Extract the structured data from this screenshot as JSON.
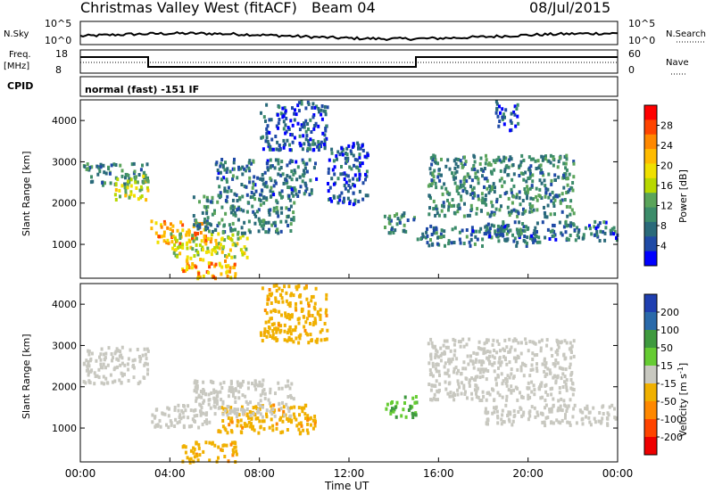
{
  "header": {
    "station": "Christmas Valley West (fitACF)",
    "beam": "Beam 04",
    "date": "08/Jul/2015"
  },
  "top_panels": {
    "nsky_label": "N.Sky",
    "nsearch_label": "N.Search",
    "noise_ticks": [
      "10^5",
      "10^0"
    ],
    "freq_label": "Freq.",
    "freq_unit": "[MHz]",
    "freq_ticks": [
      "18",
      "8"
    ],
    "nave_label": "Nave",
    "nave_ticks": [
      "60",
      "0"
    ],
    "cpid_label": "CPID",
    "cpid_text": "normal (fast) -151 IF"
  },
  "chart_data": [
    {
      "type": "heatmap",
      "name": "power",
      "ylabel": "Slant Range [km]",
      "xlabel": "",
      "ylim": [
        180,
        4500
      ],
      "yticks": [
        "1000",
        "2000",
        "3000",
        "4000"
      ],
      "colorbar": {
        "label": "Power [dB]",
        "ticks": [
          "28",
          "24",
          "20",
          "16",
          "12",
          "8",
          "4"
        ],
        "colors": [
          "#ff0000",
          "#ff4400",
          "#ff8800",
          "#ffbb00",
          "#f0e000",
          "#b8d800",
          "#5aa45a",
          "#3c8c6a",
          "#2a6a7a",
          "#1f4aa6",
          "#0000ff"
        ]
      },
      "echo_bands": [
        {
          "t": [
            0.1,
            3.0
          ],
          "r": [
            2450,
            3000
          ],
          "db": 10
        },
        {
          "t": [
            1.5,
            3.0
          ],
          "r": [
            2100,
            2700
          ],
          "db": 18
        },
        {
          "t": [
            3.1,
            5.8
          ],
          "r": [
            1050,
            1600
          ],
          "db": 24
        },
        {
          "t": [
            4.0,
            7.5
          ],
          "r": [
            700,
            1300
          ],
          "db": 18
        },
        {
          "t": [
            4.5,
            7.0
          ],
          "r": [
            200,
            700
          ],
          "db": 24
        },
        {
          "t": [
            5.0,
            9.5
          ],
          "r": [
            1300,
            2200
          ],
          "db": 10
        },
        {
          "t": [
            6.0,
            10.5
          ],
          "r": [
            2200,
            3100
          ],
          "db": 8
        },
        {
          "t": [
            8.0,
            11.0
          ],
          "r": [
            3300,
            4500
          ],
          "db": 6
        },
        {
          "t": [
            11.0,
            12.8
          ],
          "r": [
            2000,
            3500
          ],
          "db": 6
        },
        {
          "t": [
            13.5,
            15.0
          ],
          "r": [
            1300,
            1800
          ],
          "db": 10
        },
        {
          "t": [
            15.0,
            20.5
          ],
          "r": [
            1000,
            1500
          ],
          "db": 8
        },
        {
          "t": [
            15.5,
            22.0
          ],
          "r": [
            1700,
            3200
          ],
          "db": 10
        },
        {
          "t": [
            18.0,
            24.0
          ],
          "r": [
            1100,
            1600
          ],
          "db": 8
        },
        {
          "t": [
            18.5,
            19.5
          ],
          "r": [
            3800,
            4500
          ],
          "db": 6
        }
      ]
    },
    {
      "type": "heatmap",
      "name": "velocity",
      "ylabel": "Slant Range [km]",
      "xlabel": "Time UT",
      "ylim": [
        180,
        4500
      ],
      "yticks": [
        "1000",
        "2000",
        "3000",
        "4000"
      ],
      "xticks": [
        "00:00",
        "04:00",
        "08:00",
        "12:00",
        "16:00",
        "20:00",
        "00:00"
      ],
      "colorbar": {
        "label": "Velocity [m s",
        "label_superscript": "-1",
        "label_close": "]",
        "ticks": [
          "200",
          "100",
          "50",
          "15",
          "-15",
          "-50",
          "-100",
          "-200"
        ],
        "colors": [
          "#1f3fb0",
          "#2a6aaa",
          "#3f9a3f",
          "#66cc33",
          "#c8c8c0",
          "#f0b000",
          "#ff8800",
          "#ff4400",
          "#ee0000"
        ]
      },
      "echo_bands": [
        {
          "t": [
            0.1,
            3.0
          ],
          "r": [
            2100,
            3000
          ],
          "v": 0
        },
        {
          "t": [
            3.1,
            5.8
          ],
          "r": [
            1050,
            1600
          ],
          "v": 0
        },
        {
          "t": [
            4.5,
            7.0
          ],
          "r": [
            200,
            700
          ],
          "v": -40
        },
        {
          "t": [
            6.0,
            10.5
          ],
          "r": [
            900,
            1600
          ],
          "v": -40
        },
        {
          "t": [
            5.0,
            9.5
          ],
          "r": [
            1300,
            2200
          ],
          "v": 0
        },
        {
          "t": [
            8.0,
            11.0
          ],
          "r": [
            3100,
            4500
          ],
          "v": -40
        },
        {
          "t": [
            13.5,
            15.0
          ],
          "r": [
            1300,
            1800
          ],
          "v": 30
        },
        {
          "t": [
            15.5,
            22.0
          ],
          "r": [
            1700,
            3200
          ],
          "v": 0
        },
        {
          "t": [
            18.0,
            24.0
          ],
          "r": [
            1100,
            1600
          ],
          "v": 0
        }
      ]
    }
  ]
}
